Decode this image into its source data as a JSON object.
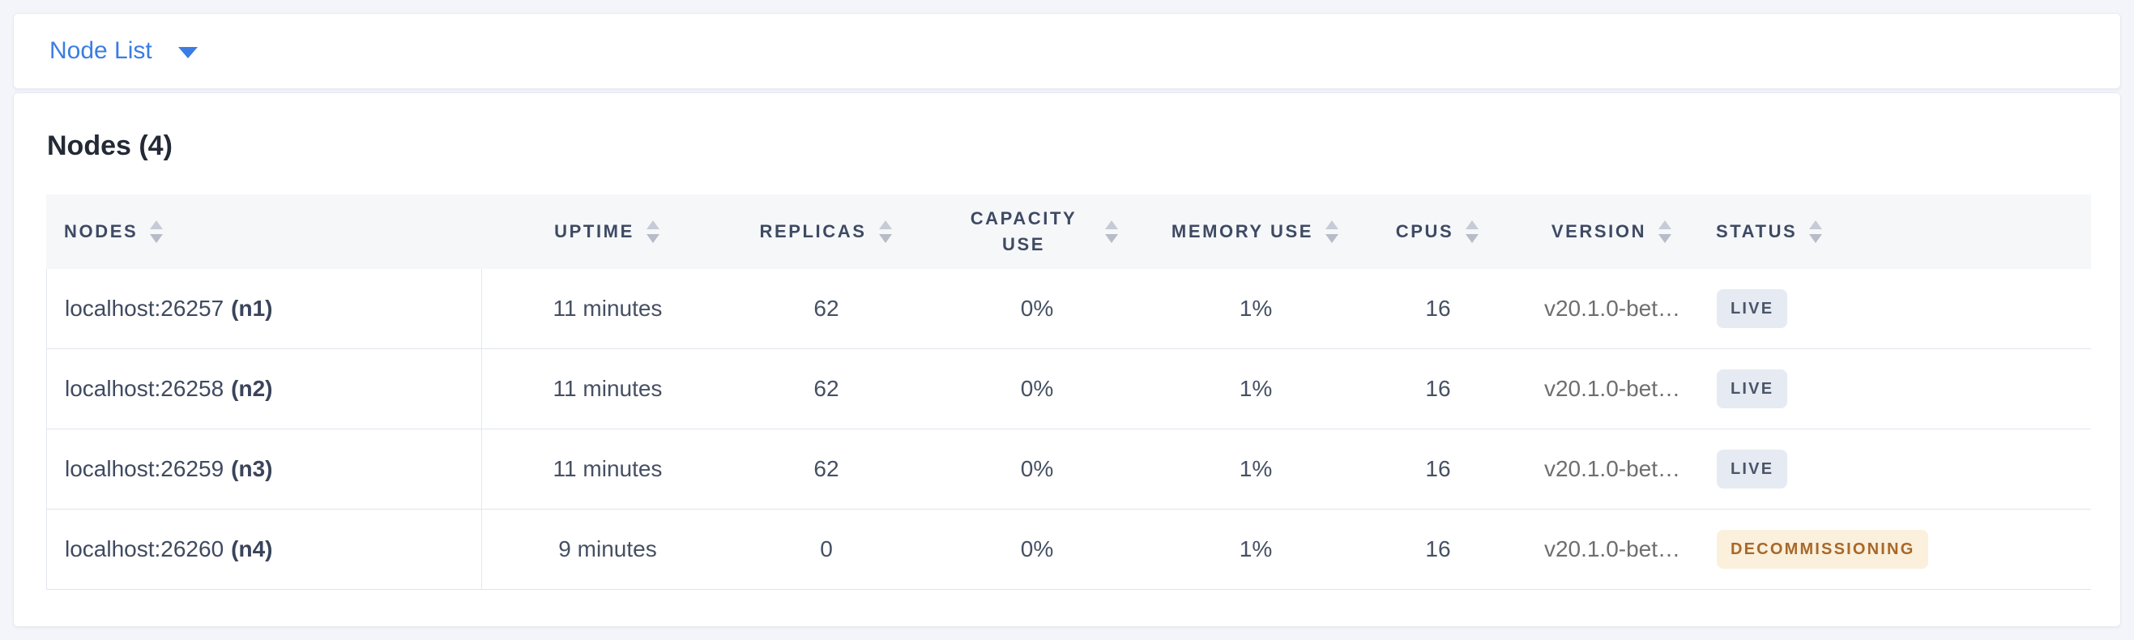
{
  "colors": {
    "accent_blue": "#3A7DE3",
    "page_background": "#F3F5FA",
    "header_background": "#F6F7F9",
    "header_text": "#3E4A63",
    "cell_text": "#465063",
    "version_text": "#6E6E6E",
    "row_border": "#DFE4EC",
    "badge_live_bg": "#E6EAF2",
    "badge_live_text": "#4A5568",
    "badge_decommissioning_bg": "#FAF0DC",
    "badge_decommissioning_text": "#A8682A"
  },
  "toolbar": {
    "view_selector": {
      "label": "Node List",
      "icon": "caret-down-icon"
    }
  },
  "panel": {
    "title": "Nodes (4)",
    "table": {
      "columns": [
        {
          "label": "NODES",
          "slug": "nodes",
          "sortable": true
        },
        {
          "label": "UPTIME",
          "slug": "uptime",
          "sortable": true
        },
        {
          "label": "REPLICAS",
          "slug": "replicas",
          "sortable": true
        },
        {
          "label": "CAPACITY USE",
          "slug": "capacity-use",
          "sortable": true
        },
        {
          "label": "MEMORY USE",
          "slug": "memory-use",
          "sortable": true
        },
        {
          "label": "CPUS",
          "slug": "cpus",
          "sortable": true
        },
        {
          "label": "VERSION",
          "slug": "version",
          "sortable": true
        },
        {
          "label": "STATUS",
          "slug": "status",
          "sortable": true
        }
      ],
      "rows": [
        {
          "node": "localhost:26257",
          "node_id": "(n1)",
          "uptime": "11 minutes",
          "replicas": "62",
          "capacity_use": "0%",
          "memory_use": "1%",
          "cpus": "16",
          "version": "v20.1.0-bet…",
          "status": "LIVE",
          "status_type": "live"
        },
        {
          "node": "localhost:26258",
          "node_id": "(n2)",
          "uptime": "11 minutes",
          "replicas": "62",
          "capacity_use": "0%",
          "memory_use": "1%",
          "cpus": "16",
          "version": "v20.1.0-bet…",
          "status": "LIVE",
          "status_type": "live"
        },
        {
          "node": "localhost:26259",
          "node_id": "(n3)",
          "uptime": "11 minutes",
          "replicas": "62",
          "capacity_use": "0%",
          "memory_use": "1%",
          "cpus": "16",
          "version": "v20.1.0-bet…",
          "status": "LIVE",
          "status_type": "live"
        },
        {
          "node": "localhost:26260",
          "node_id": "(n4)",
          "uptime": "9 minutes",
          "replicas": "0",
          "capacity_use": "0%",
          "memory_use": "1%",
          "cpus": "16",
          "version": "v20.1.0-bet…",
          "status": "DECOMMISSIONING",
          "status_type": "decommissioning"
        }
      ]
    }
  }
}
